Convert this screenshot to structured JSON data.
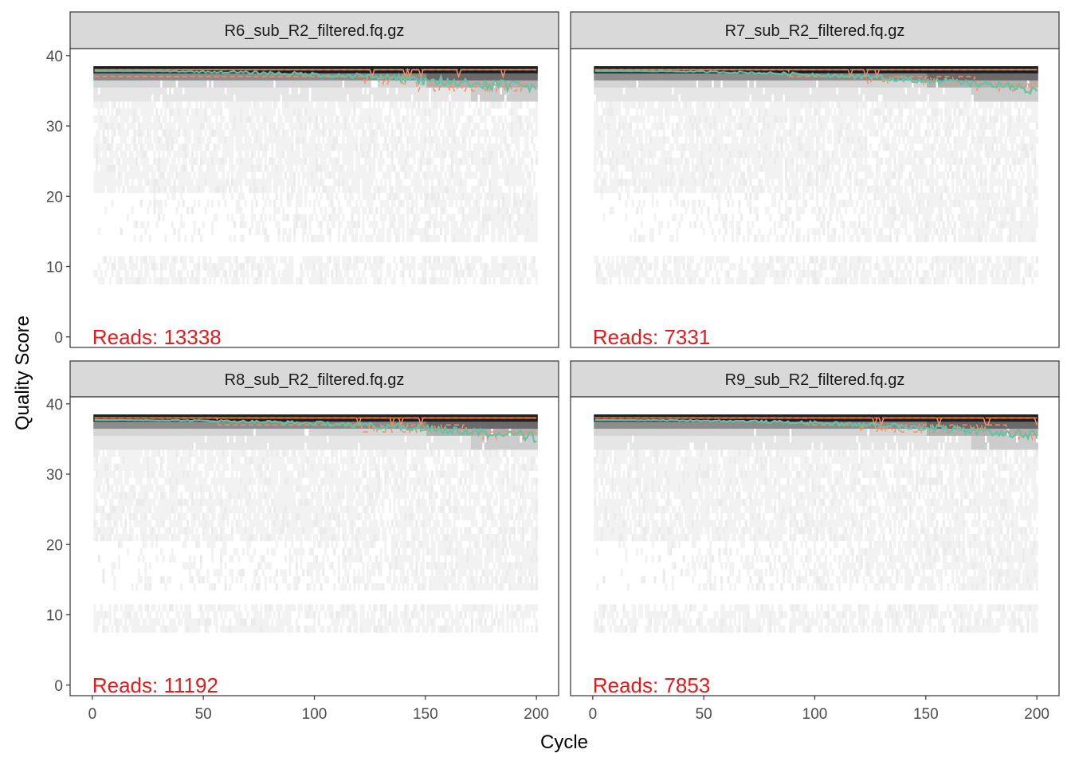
{
  "chart_data": {
    "type": "heatmap",
    "xlabel": "Cycle",
    "ylabel": "Quality Score",
    "xlim": [
      -10,
      210
    ],
    "ylim": [
      -1.5,
      41
    ],
    "x_ticks": [
      0,
      50,
      100,
      150,
      200
    ],
    "y_ticks": [
      0,
      10,
      20,
      30,
      40
    ],
    "grid": false,
    "colors": {
      "mean_line": "#66C2A5",
      "quartile_lines": "#FC8D62",
      "reads_label": "#E41A1C",
      "strip_fill": "#D9D9D9",
      "heat_low": "#F2F2F2",
      "heat_high": "#000000"
    },
    "panels": [
      {
        "title": "R6_sub_R2_filtered.fq.gz",
        "reads_label": "Reads:  13338",
        "reads": 13338,
        "mean_start": 37.8,
        "mean_end": 35.3,
        "mean_noise": 0.9,
        "q25_start": 37.5,
        "q25_end": 35.5,
        "median": 38,
        "q75": 38
      },
      {
        "title": "R7_sub_R2_filtered.fq.gz",
        "reads_label": "Reads:  7331",
        "reads": 7331,
        "mean_start": 37.8,
        "mean_end": 35.2,
        "mean_noise": 0.7,
        "q25_start": 37.8,
        "q25_end": 36.0,
        "median": 38,
        "q75": 38
      },
      {
        "title": "R8_sub_R2_filtered.fq.gz",
        "reads_label": "Reads:  11192",
        "reads": 11192,
        "mean_start": 37.7,
        "mean_end": 35.3,
        "mean_noise": 0.8,
        "q25_start": 37.6,
        "q25_end": 36.0,
        "median": 38,
        "q75": 38
      },
      {
        "title": "R9_sub_R2_filtered.fq.gz",
        "reads_label": "Reads:  7853",
        "reads": 7853,
        "mean_start": 37.7,
        "mean_end": 35.5,
        "mean_noise": 0.7,
        "q25_start": 37.8,
        "q25_end": 36.3,
        "median": 38,
        "q75": 38
      }
    ]
  }
}
